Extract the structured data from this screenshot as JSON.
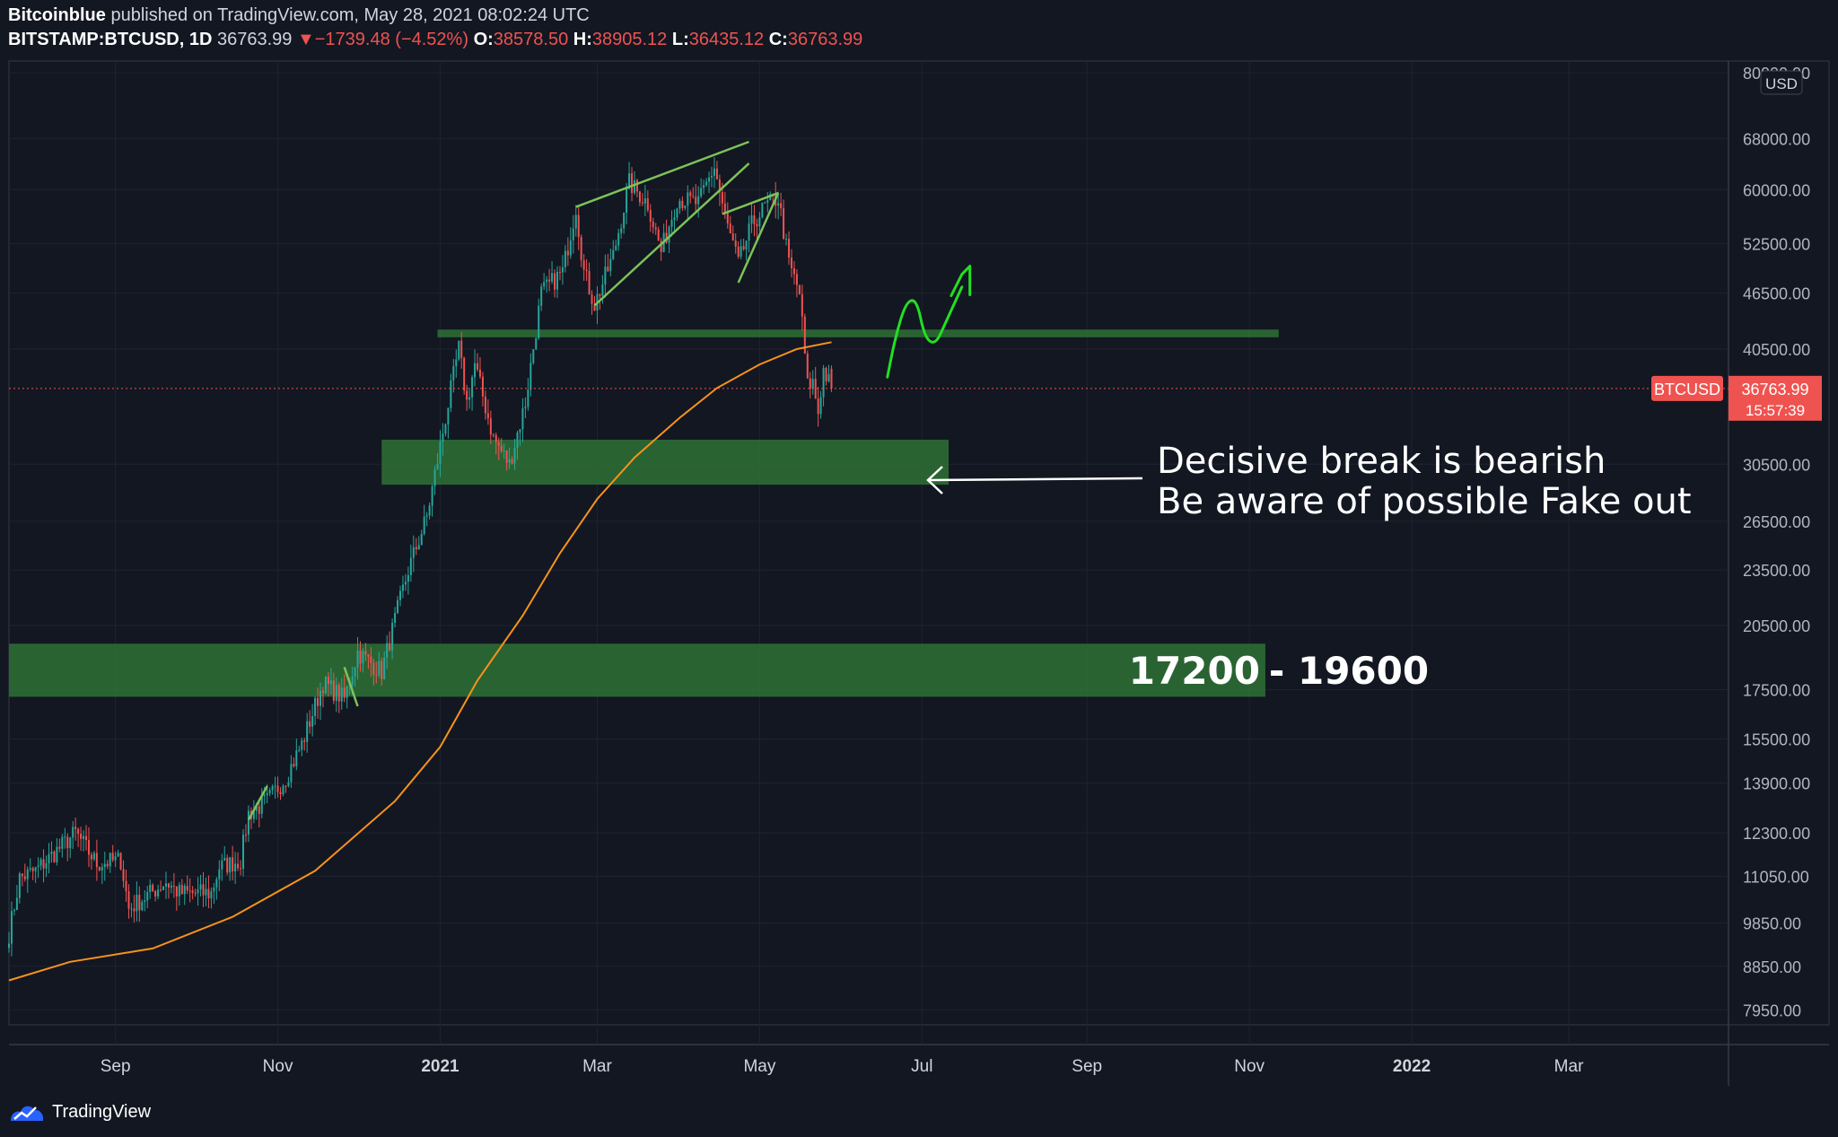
{
  "header": {
    "author": "Bitcoinblue",
    "published_text": "published on TradingView.com, May 28, 2021 08:02:24 UTC",
    "symbol": "BITSTAMP:BTCUSD, 1D",
    "last": "36763.99",
    "change_arrow": "▼",
    "change": "−1739.48 (−4.52%)",
    "open_label": "O:",
    "open": "38578.50",
    "high_label": "H:",
    "high": "38905.12",
    "low_label": "L:",
    "low": "36435.12",
    "close_label": "C:",
    "close": "36763.99"
  },
  "footer": {
    "brand": "TradingView",
    "logo_icon": "tradingview-logo-icon"
  },
  "colors": {
    "background": "#131722",
    "up": "#26a69a",
    "down": "#ef5350",
    "ma": "#f7931a",
    "zone": "#2e6b34",
    "trendline": "#7cc35a",
    "hand_drawn": "#22e022",
    "price_label": "#ef5350"
  },
  "chart_data": {
    "type": "candlestick",
    "scale": "log",
    "ylim": [
      7300,
      82000
    ],
    "currency": "USD",
    "y_ticks": [
      "80000.00",
      "68000.00",
      "60000.00",
      "52500.00",
      "46500.00",
      "40500.00",
      "30500.00",
      "26500.00",
      "23500.00",
      "20500.00",
      "17500.00",
      "15500.00",
      "13900.00",
      "12300.00",
      "11050.00",
      "9850.00",
      "8850.00",
      "7950.00"
    ],
    "x_ticks": [
      "Sep",
      "Nov",
      "2021",
      "Mar",
      "May",
      "Jul",
      "Sep",
      "Nov",
      "2022",
      "Mar"
    ],
    "x_range": [
      "2020-07-23",
      "2022-04-30"
    ],
    "current_price": {
      "series": "BTCUSD",
      "value": "36763.99",
      "countdown": "15:57:39"
    },
    "ohlc_keypoints": [
      [
        "2020-07-23",
        9600
      ],
      [
        "2020-07-27",
        11000
      ],
      [
        "2020-08-02",
        11200
      ],
      [
        "2020-08-17",
        12300
      ],
      [
        "2020-08-25",
        11400
      ],
      [
        "2020-09-03",
        11500
      ],
      [
        "2020-09-06",
        10200
      ],
      [
        "2020-09-20",
        10900
      ],
      [
        "2020-09-25",
        10600
      ],
      [
        "2020-10-07",
        10600
      ],
      [
        "2020-10-10",
        11300
      ],
      [
        "2020-10-18",
        11500
      ],
      [
        "2020-10-21",
        12900
      ],
      [
        "2020-10-28",
        13300
      ],
      [
        "2020-11-04",
        14100
      ],
      [
        "2020-11-10",
        15300
      ],
      [
        "2020-11-18",
        17800
      ],
      [
        "2020-11-26",
        17100
      ],
      [
        "2020-12-01",
        19200
      ],
      [
        "2020-12-10",
        18300
      ],
      [
        "2020-12-16",
        21300
      ],
      [
        "2020-12-20",
        23500
      ],
      [
        "2020-12-27",
        26800
      ],
      [
        "2021-01-02",
        33000
      ],
      [
        "2021-01-08",
        40600
      ],
      [
        "2021-01-11",
        35500
      ],
      [
        "2021-01-14",
        39000
      ],
      [
        "2021-01-21",
        32500
      ],
      [
        "2021-01-27",
        30500
      ],
      [
        "2021-02-02",
        35500
      ],
      [
        "2021-02-08",
        46500
      ],
      [
        "2021-02-16",
        49000
      ],
      [
        "2021-02-21",
        57500
      ],
      [
        "2021-02-24",
        49000
      ],
      [
        "2021-02-28",
        45200
      ],
      [
        "2021-03-07",
        51000
      ],
      [
        "2021-03-13",
        61000
      ],
      [
        "2021-03-20",
        58000
      ],
      [
        "2021-03-25",
        51500
      ],
      [
        "2021-03-31",
        58700
      ],
      [
        "2021-04-08",
        58000
      ],
      [
        "2021-04-14",
        63500
      ],
      [
        "2021-04-18",
        56000
      ],
      [
        "2021-04-23",
        50000
      ],
      [
        "2021-04-28",
        55000
      ],
      [
        "2021-05-03",
        57500
      ],
      [
        "2021-05-08",
        58800
      ],
      [
        "2021-05-12",
        50000
      ],
      [
        "2021-05-16",
        46500
      ],
      [
        "2021-05-19",
        37000
      ],
      [
        "2021-05-21",
        37300
      ],
      [
        "2021-05-23",
        34700
      ],
      [
        "2021-05-25",
        38500
      ],
      [
        "2021-05-28",
        36764
      ]
    ],
    "ma_keypoints": [
      [
        "2020-07-23",
        8550
      ],
      [
        "2020-08-15",
        8950
      ],
      [
        "2020-09-15",
        9250
      ],
      [
        "2020-10-15",
        10000
      ],
      [
        "2020-11-15",
        11200
      ],
      [
        "2020-12-15",
        13300
      ],
      [
        "2021-01-01",
        15200
      ],
      [
        "2021-01-15",
        17900
      ],
      [
        "2021-02-01",
        21000
      ],
      [
        "2021-02-15",
        24500
      ],
      [
        "2021-03-01",
        28000
      ],
      [
        "2021-03-15",
        31000
      ],
      [
        "2021-04-01",
        34200
      ],
      [
        "2021-04-15",
        36800
      ],
      [
        "2021-05-01",
        39000
      ],
      [
        "2021-05-15",
        40500
      ],
      [
        "2021-05-28",
        41200
      ]
    ],
    "zones": [
      {
        "name": "zone-17200-19600",
        "y": [
          17200,
          19600
        ],
        "x": [
          "2020-07-23",
          "2021-11-07"
        ],
        "label_low": "17200",
        "label_sep": " - ",
        "label_high": "19600"
      },
      {
        "name": "zone-29000-32500",
        "y": [
          29000,
          32400
        ],
        "x": [
          "2020-12-10",
          "2021-07-11"
        ]
      },
      {
        "name": "zone-42000",
        "y": [
          41700,
          42500
        ],
        "x": [
          "2020-12-31",
          "2021-11-12"
        ]
      }
    ],
    "trendlines": [
      [
        [
          "2021-02-21",
          57500
        ],
        [
          "2021-04-27",
          67500
        ]
      ],
      [
        [
          "2021-02-28",
          45100
        ],
        [
          "2021-04-27",
          64000
        ]
      ],
      [
        [
          "2021-04-17",
          56500
        ],
        [
          "2021-05-08",
          59500
        ]
      ],
      [
        [
          "2021-04-23",
          47700
        ],
        [
          "2021-05-08",
          59500
        ]
      ],
      [
        [
          "2020-10-21",
          12700
        ],
        [
          "2020-10-28",
          13800
        ]
      ],
      [
        [
          "2020-11-26",
          18500
        ],
        [
          "2020-12-01",
          16800
        ]
      ]
    ],
    "annotations": {
      "line1": "Decisive break is bearish",
      "line2": "Be aware of possible Fake out"
    },
    "hand_drawn_path": [
      [
        "2021-06-18",
        37800
      ],
      [
        "2021-06-21",
        41700
      ],
      [
        "2021-06-25",
        45500
      ],
      [
        "2021-06-29",
        45800
      ],
      [
        "2021-07-02",
        41700
      ],
      [
        "2021-07-06",
        40900
      ],
      [
        "2021-07-10",
        43300
      ],
      [
        "2021-07-16",
        47200
      ]
    ],
    "hand_drawn_arrow": [
      [
        "2021-07-12",
        46200
      ],
      [
        "2021-07-16",
        48700
      ],
      [
        "2021-07-19",
        49700
      ],
      [
        "2021-07-19",
        46300
      ]
    ]
  }
}
